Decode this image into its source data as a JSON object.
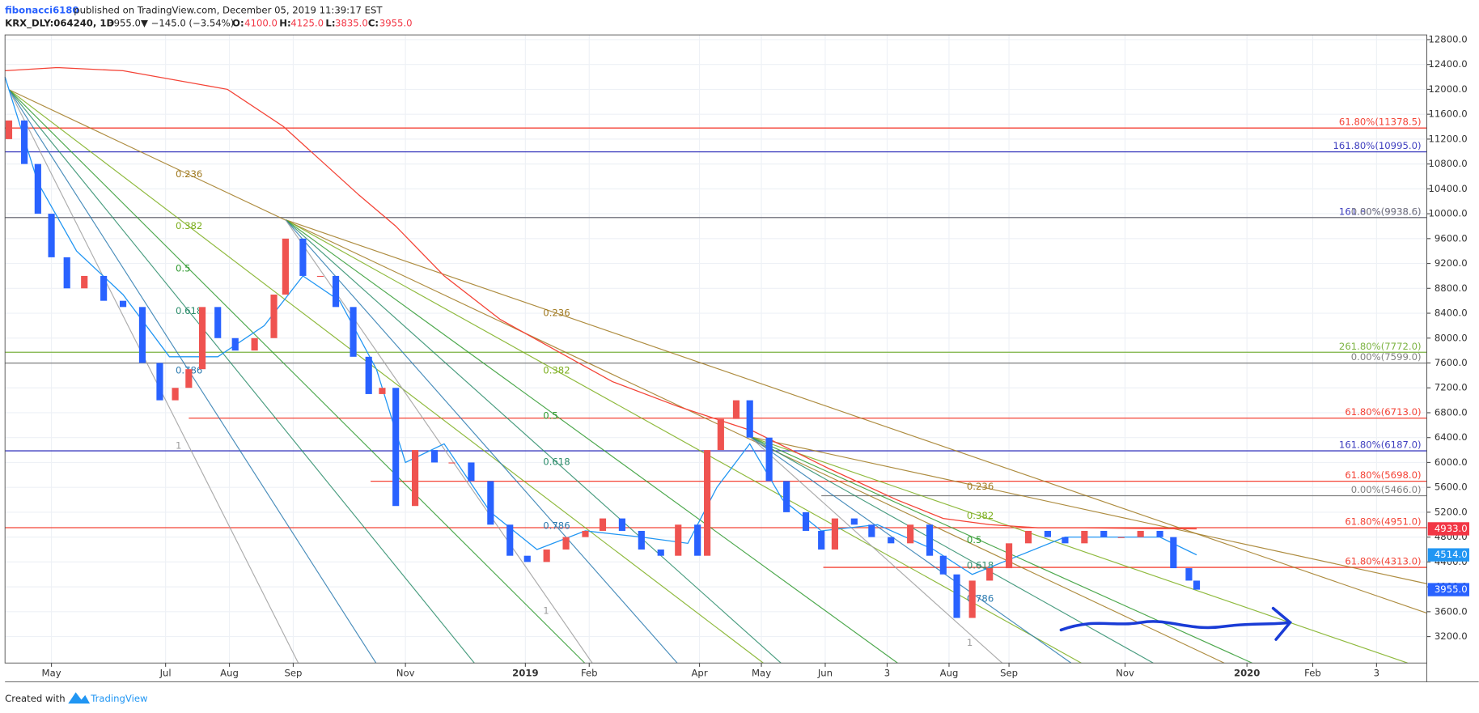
{
  "chart_data": {
    "type": "candlestick",
    "header": {
      "user": "fibonacci6180",
      "published": "published on TradingView.com, December 05, 2019 11:39:17 EST",
      "symbol": "KRX_DLY:064240, 1D",
      "last": "3955.0",
      "change": "▼ −145.0 (−3.54%)",
      "o_label": "O:",
      "o": "4100.0",
      "h_label": "H:",
      "h": "4125.0",
      "l_label": "L:",
      "l": "3835.0",
      "c_label": "C:",
      "c": "3955.0"
    },
    "footer": {
      "created": "Created with",
      "brand": "TradingView"
    },
    "xlim": [
      0,
      735
    ],
    "ylim": [
      2775,
      12876
    ],
    "grid": true,
    "xticks": [
      {
        "value": 24,
        "label": "May"
      },
      {
        "value": 83,
        "label": "Jul"
      },
      {
        "value": 116,
        "label": "Aug"
      },
      {
        "value": 149,
        "label": "Sep"
      },
      {
        "value": 207,
        "label": "Nov"
      },
      {
        "value": 269,
        "label": "2019"
      },
      {
        "value": 302,
        "label": "Feb"
      },
      {
        "value": 359,
        "label": "Apr"
      },
      {
        "value": 391,
        "label": "May"
      },
      {
        "value": 424,
        "label": "Jun"
      },
      {
        "value": 456,
        "label": "3"
      },
      {
        "value": 488,
        "label": "Aug"
      },
      {
        "value": 519,
        "label": "Sep"
      },
      {
        "value": 579,
        "label": "Nov"
      },
      {
        "value": 642,
        "label": "2020"
      },
      {
        "value": 676,
        "label": "Feb"
      },
      {
        "value": 709,
        "label": "3"
      }
    ],
    "yticks": [
      {
        "value": 3200,
        "label": "3200.0"
      },
      {
        "value": 3600,
        "label": "3600.0"
      },
      {
        "value": 4000,
        "label": "4000.0"
      },
      {
        "value": 4400,
        "label": "4400.0"
      },
      {
        "value": 4800,
        "label": "4800.0"
      },
      {
        "value": 5200,
        "label": "5200.0"
      },
      {
        "value": 5600,
        "label": "5600.0"
      },
      {
        "value": 6000,
        "label": "6000.0"
      },
      {
        "value": 6400,
        "label": "6400.0"
      },
      {
        "value": 6800,
        "label": "6800.0"
      },
      {
        "value": 7200,
        "label": "7200.0"
      },
      {
        "value": 7600,
        "label": "7600.0"
      },
      {
        "value": 8000,
        "label": "8000.0"
      },
      {
        "value": 8400,
        "label": "8400.0"
      },
      {
        "value": 8800,
        "label": "8800.0"
      },
      {
        "value": 9200,
        "label": "9200.0"
      },
      {
        "value": 9600,
        "label": "9600.0"
      },
      {
        "value": 10000,
        "label": "10000.0"
      },
      {
        "value": 10400,
        "label": "10400.0"
      },
      {
        "value": 10800,
        "label": "10800.0"
      },
      {
        "value": 11200,
        "label": "11200.0"
      },
      {
        "value": 11600,
        "label": "11600.0"
      },
      {
        "value": 12000,
        "label": "12000.0"
      },
      {
        "value": 12400,
        "label": "12400.0"
      },
      {
        "value": 12800,
        "label": "12800.0"
      }
    ],
    "up_color": "#ef5350",
    "down_color": "#2962ff",
    "x": [
      2,
      10,
      17,
      24,
      32,
      41,
      51,
      61,
      71,
      80,
      88,
      95,
      102,
      110,
      119,
      129,
      139,
      145,
      154,
      163,
      171,
      180,
      188,
      195,
      202,
      212,
      222,
      231,
      241,
      251,
      261,
      270,
      280,
      290,
      300,
      309,
      319,
      329,
      339,
      348,
      358,
      363,
      370,
      378,
      385,
      395,
      404,
      414,
      422,
      429,
      439,
      448,
      458,
      468,
      478,
      485,
      492,
      500,
      509,
      519,
      529,
      539,
      548,
      558,
      568,
      577,
      587,
      597,
      604,
      612,
      616
    ],
    "open": [
      11200,
      11500,
      10800,
      10000,
      9300,
      8800,
      9000,
      8600,
      8500,
      7600,
      7000,
      7200,
      7500,
      8500,
      8000,
      7800,
      8000,
      8700,
      9600,
      9000,
      9000,
      8500,
      7700,
      7100,
      7200,
      5300,
      6200,
      6000,
      6000,
      5700,
      5000,
      4500,
      4400,
      4600,
      4800,
      4900,
      5100,
      4900,
      4600,
      4500,
      5000,
      4500,
      6200,
      6700,
      7000,
      6400,
      5700,
      5200,
      4900,
      4600,
      5100,
      5000,
      4800,
      4700,
      5000,
      4500,
      4200,
      3500,
      4100,
      4300,
      4700,
      4900,
      4800,
      4700,
      4900,
      4800,
      4800,
      4900,
      4800,
      4300,
      4100
    ],
    "close": [
      11500,
      10800,
      10000,
      9300,
      8800,
      9000,
      8600,
      8500,
      7600,
      7000,
      7200,
      7500,
      8500,
      8000,
      7800,
      8000,
      8700,
      9600,
      9000,
      9000,
      8500,
      7700,
      7100,
      7200,
      5300,
      6200,
      6000,
      6000,
      5700,
      5000,
      4500,
      4400,
      4600,
      4800,
      4900,
      5100,
      4900,
      4600,
      4500,
      5000,
      4500,
      6200,
      6700,
      7000,
      6400,
      5700,
      5200,
      4900,
      4600,
      5100,
      5000,
      4800,
      4700,
      5000,
      4500,
      4200,
      3500,
      4100,
      4300,
      4700,
      4900,
      4800,
      4700,
      4900,
      4800,
      4800,
      4900,
      4800,
      4300,
      4100,
      3955
    ],
    "series": [
      {
        "color": "#f44336",
        "x": [
          0,
          27,
          61,
          115,
          144,
          183,
          202,
          227,
          256,
          285,
          314,
          348,
          387,
          426,
          461,
          485,
          509,
          534,
          558,
          582,
          616
        ],
        "values": [
          12300,
          12350,
          12300,
          12000,
          11400,
          10300,
          9800,
          9000,
          8300,
          7800,
          7300,
          6900,
          6500,
          5900,
          5400,
          5100,
          5000,
          4950,
          4950,
          4940,
          4933
        ]
      },
      {
        "color": "#2196f3",
        "x": [
          0,
          17,
          37,
          61,
          85,
          110,
          134,
          154,
          173,
          192,
          207,
          227,
          251,
          275,
          300,
          329,
          353,
          368,
          385,
          402,
          422,
          451,
          480,
          500,
          524,
          548,
          573,
          597,
          616
        ],
        "values": [
          12200,
          10500,
          9400,
          8700,
          7700,
          7700,
          8200,
          9000,
          8600,
          7500,
          6000,
          6300,
          5200,
          4600,
          4900,
          4800,
          4700,
          5600,
          6300,
          5400,
          4900,
          5000,
          4600,
          4200,
          4500,
          4800,
          4800,
          4800,
          4514
        ]
      }
    ],
    "levels": [
      {
        "value": 11378.5,
        "label": "61.80%(11378.5)",
        "color": "#f44336",
        "start": 0
      },
      {
        "value": 10995,
        "label": "161.80%(10995.0)",
        "color": "#3f3fbf",
        "start": 0
      },
      {
        "value": 9938.6,
        "label": "161.80%(9938.6)",
        "color": "#3f3fbf",
        "start": 0
      },
      {
        "value": 9938.6,
        "label": "0.00%(9938.6)",
        "color": "#808080",
        "start": 0
      },
      {
        "value": 7772,
        "label": "261.80%(7772.0)",
        "color": "#7cb342",
        "start": 0
      },
      {
        "value": 7599,
        "label": "0.00%(7599.0)",
        "color": "#808080",
        "start": 0
      },
      {
        "value": 6713,
        "label": "61.80%(6713.0)",
        "color": "#f44336",
        "start": 95
      },
      {
        "value": 6187,
        "label": "161.80%(6187.0)",
        "color": "#3f3fbf",
        "start": 0
      },
      {
        "value": 5698,
        "label": "61.80%(5698.0)",
        "color": "#f44336",
        "start": 189
      },
      {
        "value": 5466,
        "label": "0.00%(5466.0)",
        "color": "#808080",
        "start": 422
      },
      {
        "value": 4951,
        "label": "61.80%(4951.0)",
        "color": "#f44336",
        "start": 0
      },
      {
        "value": 4313,
        "label": "61.80%(4313.0)",
        "color": "#f44336",
        "start": 423
      }
    ],
    "fans": [
      {
        "origin_x": 2,
        "origin": 11996,
        "through_x": 95,
        "lines": [
          {
            "label": "0.236",
            "through": 10631,
            "color": "#a0791f"
          },
          {
            "label": "0.382",
            "through": 9797,
            "color": "#7cae1d"
          },
          {
            "label": "0.5",
            "through": 9115,
            "color": "#2f9a2f"
          },
          {
            "label": "0.618",
            "through": 8432,
            "color": "#2b8c6a"
          },
          {
            "label": "0.786",
            "through": 7477,
            "color": "#2a7ab0"
          },
          {
            "label": "1",
            "through": 6264,
            "color": "#9e9e9e"
          }
        ]
      },
      {
        "origin_x": 145,
        "origin": 9903,
        "through_x": 285,
        "lines": [
          {
            "label": "0.236",
            "through": 8402,
            "color": "#a0791f"
          },
          {
            "label": "0.382",
            "through": 7477,
            "color": "#7cae1d"
          },
          {
            "label": "0.5",
            "through": 6749,
            "color": "#2f9a2f"
          },
          {
            "label": "0.618",
            "through": 6006,
            "color": "#2b8c6a"
          },
          {
            "label": "0.786",
            "through": 4975,
            "color": "#2a7ab0"
          },
          {
            "label": "1",
            "through": 3610,
            "color": "#9e9e9e"
          }
        ]
      },
      {
        "origin_x": 385,
        "origin": 6415,
        "through_x": 504,
        "lines": [
          {
            "label": "0.236",
            "through": 5611,
            "color": "#a0791f"
          },
          {
            "label": "0.382",
            "through": 5141,
            "color": "#7cae1d"
          },
          {
            "label": "0.5",
            "through": 4747,
            "color": "#2f9a2f"
          },
          {
            "label": "0.618",
            "through": 4338,
            "color": "#2b8c6a"
          },
          {
            "label": "0.786",
            "through": 3807,
            "color": "#2a7ab0"
          },
          {
            "label": "1",
            "through": 3094,
            "color": "#9e9e9e"
          }
        ]
      }
    ],
    "price_tags": [
      {
        "value": 4933,
        "label": "4933.0",
        "color": "#f23645"
      },
      {
        "value": 4514,
        "label": "4514.0",
        "color": "#2196f3"
      },
      {
        "value": 3955,
        "label": "3955.0",
        "color": "#2962ff"
      }
    ]
  }
}
